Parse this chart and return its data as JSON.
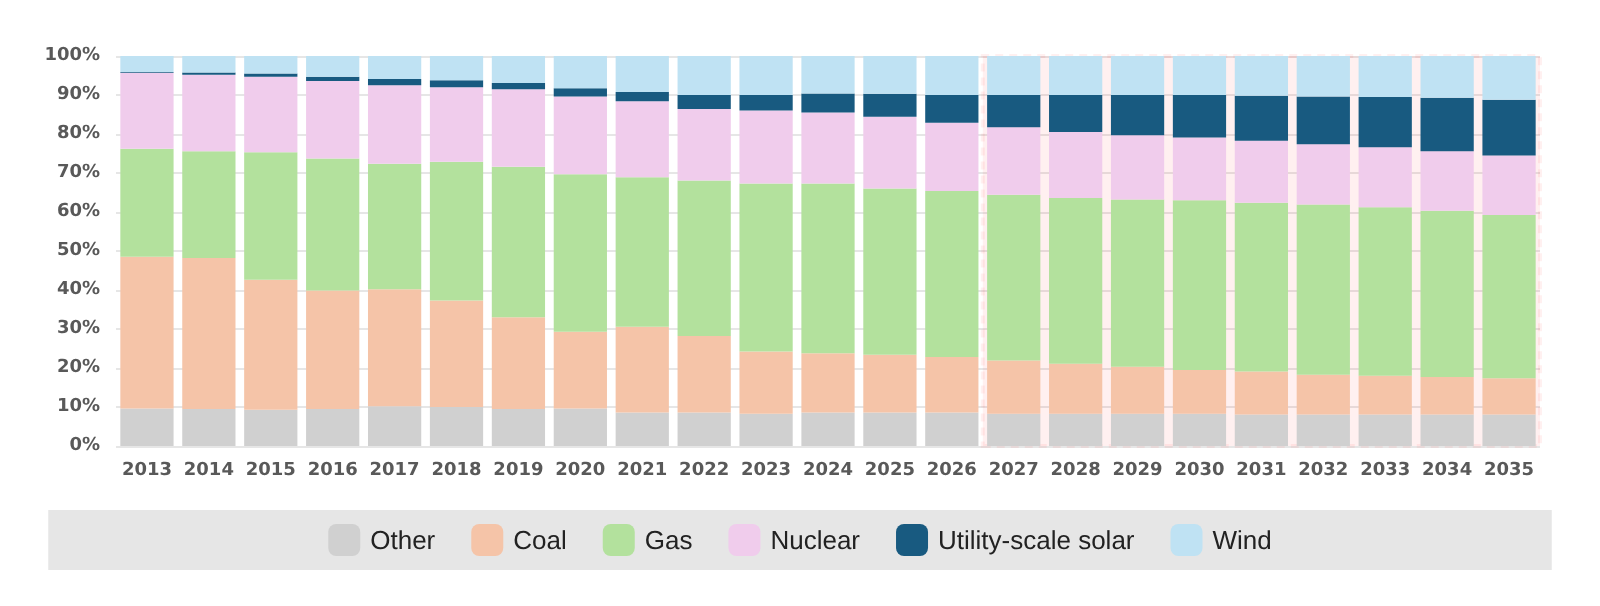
{
  "chart_data": {
    "type": "bar",
    "stacked": true,
    "categories": [
      "2013",
      "2014",
      "2015",
      "2016",
      "2017",
      "2018",
      "2019",
      "2020",
      "2021",
      "2022",
      "2023",
      "2024",
      "2025",
      "2026",
      "2027",
      "2028",
      "2029",
      "2030",
      "2031",
      "2032",
      "2033",
      "2034",
      "2035"
    ],
    "series": [
      {
        "name": "Other",
        "color": "#d0d0d0",
        "values": [
          9.6,
          9.5,
          9.3,
          9.5,
          10.2,
          10,
          9.5,
          9.6,
          8.6,
          8.6,
          8.3,
          8.6,
          8.6,
          8.6,
          8.3,
          8.3,
          8.3,
          8.3,
          8.1,
          8.1,
          8.1,
          8.1,
          8.1
        ]
      },
      {
        "name": "Coal",
        "color": "#f5c4a8",
        "values": [
          38.9,
          38.7,
          33.3,
          30.4,
          30.0,
          27.3,
          23.5,
          19.7,
          22.0,
          19.6,
          15.9,
          15.2,
          14.8,
          14.2,
          13.6,
          12.8,
          12.0,
          11.2,
          11.0,
          10.2,
          9.9,
          9.6,
          9.3
        ]
      },
      {
        "name": "Gas",
        "color": "#b3e19d",
        "values": [
          27.7,
          27.4,
          32.7,
          33.8,
          32.2,
          35.6,
          38.6,
          40.4,
          38.3,
          39.9,
          43.1,
          43.5,
          42.6,
          42.6,
          42.5,
          42.5,
          42.9,
          43.5,
          43.3,
          43.6,
          43.2,
          42.6,
          41.8
        ]
      },
      {
        "name": "Nuclear",
        "color": "#f0ccec",
        "values": [
          19.5,
          19.6,
          19.4,
          19.9,
          20.1,
          19.1,
          19.9,
          19.9,
          19.5,
          18.3,
          18.7,
          18.2,
          18.4,
          17.5,
          17.3,
          16.9,
          16.5,
          16.1,
          15.9,
          15.5,
          15.4,
          15.3,
          15.3
        ]
      },
      {
        "name": "Utility-scale solar",
        "color": "#185a80",
        "values": [
          0.2,
          0.6,
          0.8,
          1.1,
          1.6,
          1.8,
          1.6,
          2.1,
          2.4,
          3.6,
          4.0,
          4.9,
          5.9,
          7.1,
          8.3,
          9.5,
          10.3,
          10.9,
          11.5,
          12.2,
          12.9,
          13.7,
          14.3
        ]
      },
      {
        "name": "Wind",
        "color": "#bfe2f3",
        "values": [
          4.1,
          4.2,
          4.5,
          5.3,
          5.9,
          6.2,
          6.9,
          8.3,
          9.2,
          10.0,
          10.0,
          9.6,
          9.7,
          10.0,
          10.0,
          10.0,
          10.0,
          10.0,
          10.2,
          10.4,
          10.5,
          10.7,
          11.2
        ]
      }
    ],
    "ylim": [
      0,
      100
    ],
    "yticks": [
      {
        "value": 0,
        "label": "0%"
      },
      {
        "value": 10,
        "label": "10%"
      },
      {
        "value": 20,
        "label": "20%"
      },
      {
        "value": 30,
        "label": "30%"
      },
      {
        "value": 40,
        "label": "40%"
      },
      {
        "value": 50,
        "label": "50%"
      },
      {
        "value": 60,
        "label": "60%"
      },
      {
        "value": 70,
        "label": "70%"
      },
      {
        "value": 80,
        "label": "80%"
      },
      {
        "value": 90,
        "label": "90%"
      },
      {
        "value": 100,
        "label": "100%"
      }
    ],
    "grid": "y",
    "legend": "bottom",
    "bands": [
      {
        "axis": "x",
        "from": "2027",
        "to": "2035",
        "label": null,
        "color": "#ff0000"
      }
    ]
  }
}
